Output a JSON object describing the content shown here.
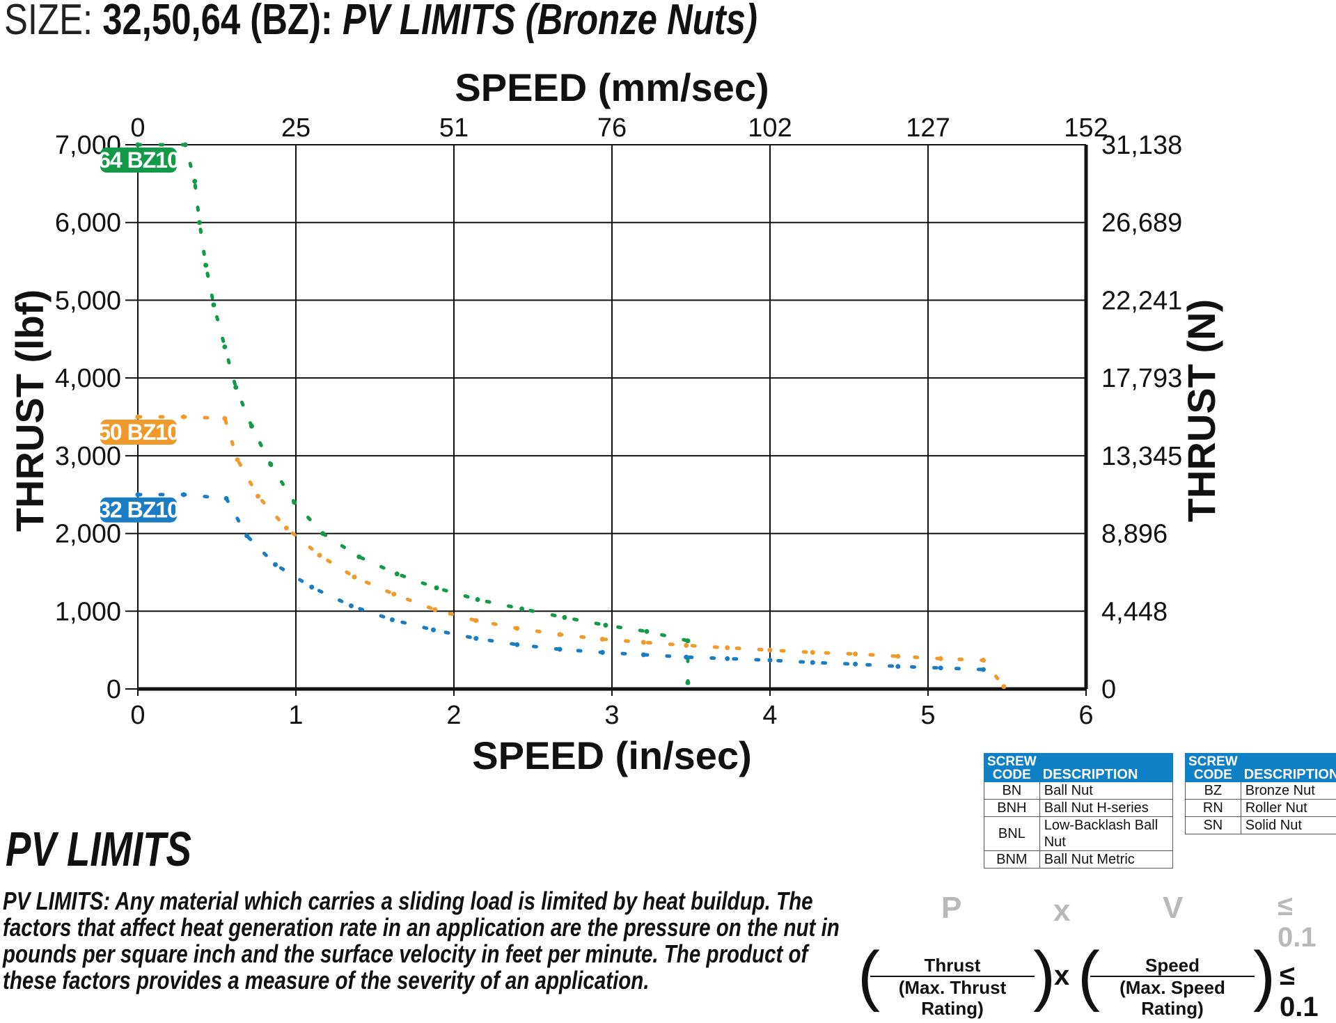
{
  "title": {
    "size_label": "SIZE:",
    "size_codes": "32,50,64 (BZ):",
    "description": "PV LIMITS (Bronze Nuts)"
  },
  "chart_data": {
    "type": "line",
    "x_top_label": "SPEED (mm/sec)",
    "x_bottom_label": "SPEED (in/sec)",
    "y_left_label": "THRUST (lbf)",
    "y_right_label": "THRUST (N)",
    "xlim": [
      0,
      6
    ],
    "ylim": [
      0,
      7000
    ],
    "grid": true,
    "x_bottom_ticks": [
      "0",
      "1",
      "2",
      "3",
      "4",
      "5",
      "6"
    ],
    "x_top_ticks": [
      "0",
      "25",
      "51",
      "76",
      "102",
      "127",
      "152"
    ],
    "y_left_ticks": [
      "0",
      "1,000",
      "2,000",
      "3,000",
      "4,000",
      "5,000",
      "6,000",
      "7,000"
    ],
    "y_right_ticks": [
      "0",
      "4,448",
      "8,896",
      "13,345",
      "17,793",
      "22,241",
      "26,689",
      "31,138"
    ],
    "series": [
      {
        "name": "64 BZ10",
        "color": "#129a48",
        "x": [
          0,
          0.3,
          0.36,
          0.39,
          0.43,
          0.48,
          0.55,
          0.62,
          0.72,
          0.84,
          0.99,
          1.17,
          1.4,
          1.64,
          1.89,
          2.15,
          2.43,
          2.7,
          2.96,
          3.22,
          3.48,
          3.48
        ],
        "y": [
          7000,
          7000,
          6530,
          6000,
          5450,
          4940,
          4400,
          3880,
          3380,
          2890,
          2400,
          2000,
          1700,
          1480,
          1300,
          1150,
          1030,
          920,
          820,
          740,
          620,
          80
        ]
      },
      {
        "name": "50 BZ10",
        "color": "#f09a2c",
        "x": [
          0,
          0.29,
          0.55,
          0.63,
          0.76,
          0.94,
          1.15,
          1.37,
          1.62,
          1.88,
          2.14,
          2.4,
          2.67,
          2.94,
          3.2,
          3.47,
          3.73,
          4.0,
          4.27,
          4.54,
          4.81,
          5.08,
          5.35,
          5.48
        ],
        "y": [
          3500,
          3500,
          3480,
          2950,
          2480,
          2070,
          1720,
          1440,
          1220,
          1020,
          880,
          780,
          700,
          640,
          600,
          560,
          530,
          500,
          470,
          450,
          420,
          390,
          370,
          30
        ]
      },
      {
        "name": "32 BZ10",
        "color": "#1a7dc4",
        "x": [
          0,
          0.29,
          0.56,
          0.69,
          0.87,
          1.1,
          1.35,
          1.61,
          1.87,
          2.14,
          2.4,
          2.67,
          2.94,
          3.2,
          3.47,
          3.73,
          4.0,
          4.27,
          4.54,
          4.81,
          5.08,
          5.35
        ],
        "y": [
          2500,
          2500,
          2450,
          1970,
          1600,
          1310,
          1070,
          890,
          760,
          650,
          570,
          510,
          470,
          440,
          410,
          390,
          370,
          340,
          320,
          290,
          270,
          250
        ]
      }
    ]
  },
  "legend_tables": [
    {
      "header_code": [
        "SCREW",
        "CODE"
      ],
      "header_desc": "DESCRIPTION",
      "rows": [
        {
          "code": "BN",
          "desc": "Ball Nut"
        },
        {
          "code": "BNH",
          "desc": "Ball Nut H-series"
        },
        {
          "code": "BNL",
          "desc": "Low-Backlash Ball Nut"
        },
        {
          "code": "BNM",
          "desc": "Ball Nut Metric"
        }
      ]
    },
    {
      "header_code": [
        "SCREW",
        "CODE"
      ],
      "header_desc": "DESCRIPTION",
      "rows": [
        {
          "code": "BZ",
          "desc": "Bronze Nut"
        },
        {
          "code": "RN",
          "desc": "Roller Nut"
        },
        {
          "code": "SN",
          "desc": "Solid Nut"
        }
      ]
    }
  ],
  "pv_section": {
    "heading": "PV LIMITS",
    "paragraph": "PV LIMITS: Any material which carries a sliding load is limited by heat buildup. The factors that affect heat generation rate in an application are the pressure on the nut in pounds per square inch and the surface velocity in feet per minute. The product of these factors provides a measure of the severity of an application."
  },
  "formula": {
    "p": "P",
    "x": "x",
    "v": "V",
    "limit": "≤ 0.1",
    "thrust_num": "Thrust",
    "thrust_den": "(Max. Thrust Rating)",
    "speed_num": "Speed",
    "speed_den": "(Max. Speed Rating)",
    "times": "x",
    "limit2": "≤ 0.1"
  }
}
